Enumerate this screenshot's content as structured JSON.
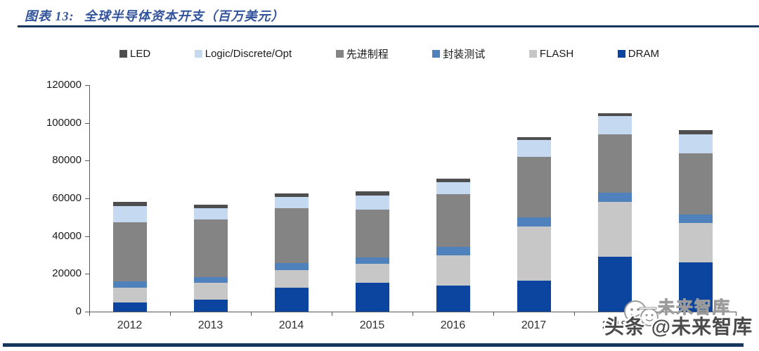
{
  "header": {
    "title_prefix": "图表 13:",
    "title_text": "全球半导体资本开支（百万美元）"
  },
  "watermark": {
    "logo": "wechat-smiley-icon",
    "line_small": "—未来智库",
    "line_main": "头条 @未来智库"
  },
  "chart_data": {
    "type": "bar",
    "stacked": true,
    "title": "全球半导体资本开支（百万美元）",
    "xlabel": "",
    "ylabel": "",
    "ylim": [
      0,
      120000
    ],
    "ytick_interval": 20000,
    "grid": false,
    "legend_position": "top",
    "categories": [
      "2012",
      "2013",
      "2014",
      "2015",
      "2016",
      "2017",
      "2018",
      ""
    ],
    "stack_bottom_to_top": [
      "DRAM",
      "FLASH",
      "封装测试",
      "先进制程",
      "Logic/Discrete/Opt",
      "LED"
    ],
    "series": [
      {
        "name": "LED",
        "color": "#4e4e4e",
        "values": [
          2000,
          2000,
          2000,
          2200,
          1800,
          1500,
          1500,
          2200
        ]
      },
      {
        "name": "Logic/Discrete/Opt",
        "color": "#c5d9f1",
        "values": [
          8500,
          6000,
          6000,
          7400,
          6200,
          9000,
          9500,
          10000
        ]
      },
      {
        "name": "先进制程",
        "color": "#848484",
        "values": [
          31500,
          30500,
          29000,
          25500,
          28300,
          32000,
          31000,
          32500
        ]
      },
      {
        "name": "封装测试",
        "color": "#4f81bd",
        "values": [
          3500,
          3200,
          3700,
          3500,
          4200,
          5000,
          5000,
          4500
        ]
      },
      {
        "name": "FLASH",
        "color": "#c7c7c7",
        "values": [
          7500,
          8600,
          9500,
          10000,
          16200,
          28500,
          29000,
          20700
        ]
      },
      {
        "name": "DRAM",
        "color": "#0c459f",
        "values": [
          5000,
          6500,
          12500,
          15200,
          13700,
          16500,
          29000,
          26100
        ]
      }
    ],
    "totals": [
      58000,
      56800,
      62700,
      63800,
      70400,
      92500,
      105000,
      96000
    ],
    "ytick_labels": [
      "0",
      "20000",
      "40000",
      "60000",
      "80000",
      "100000",
      "120000"
    ]
  },
  "colors": {
    "rule": "#17365d",
    "title": "#33549c",
    "axis": "#595959"
  }
}
